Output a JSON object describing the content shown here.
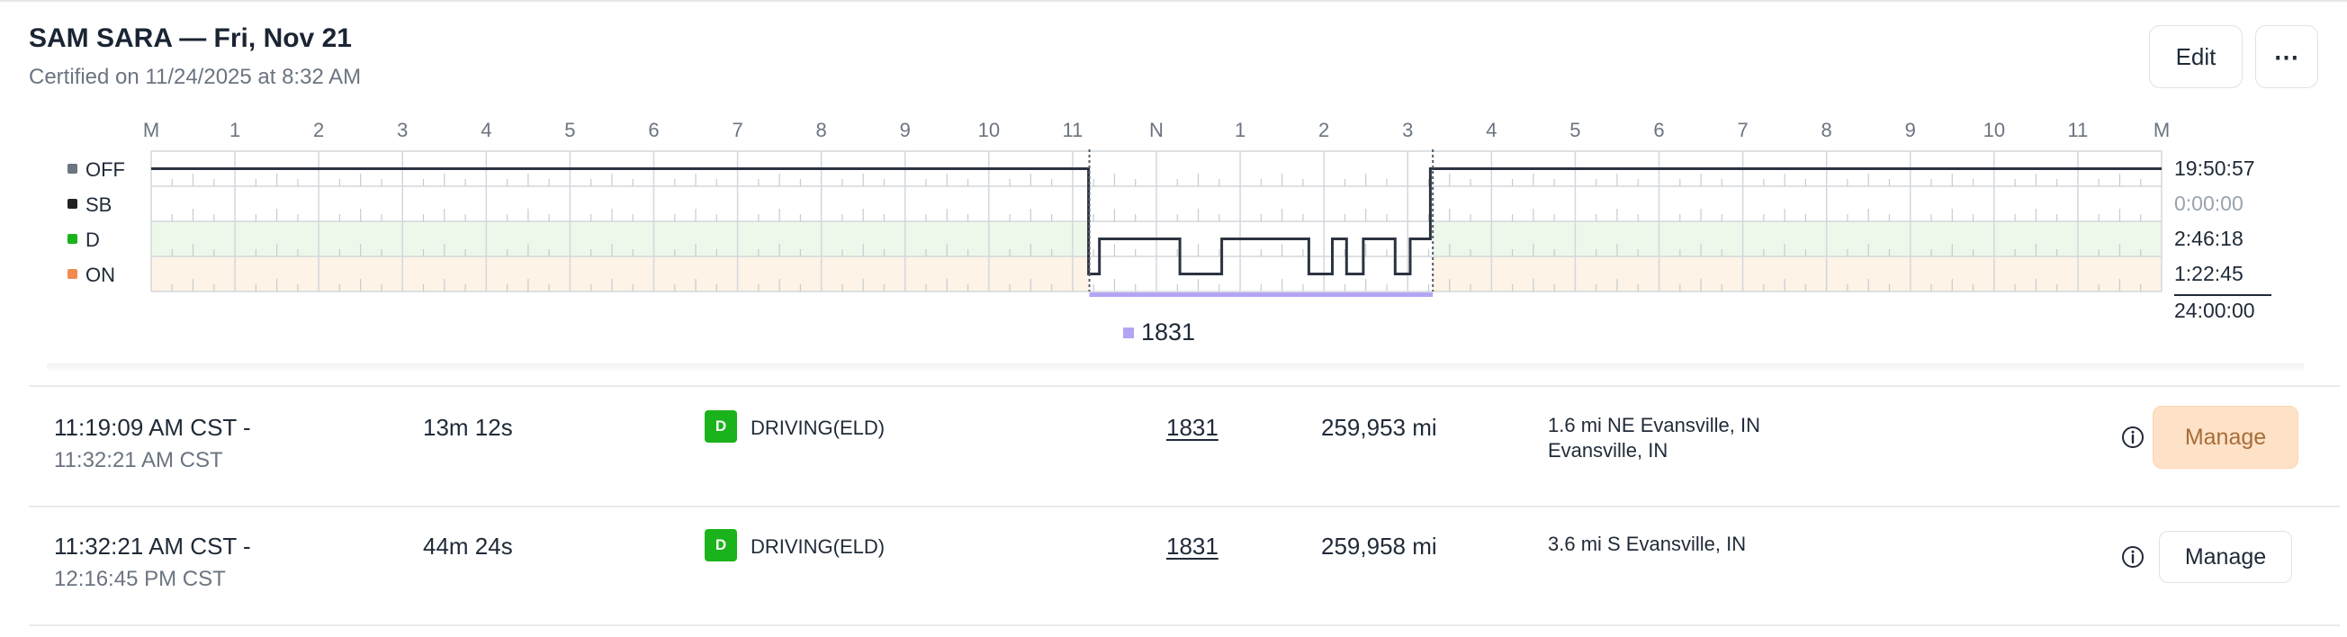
{
  "header": {
    "title": "SAM SARA — Fri, Nov 21",
    "subtitle": "Certified on 11/24/2025 at 8:32 AM",
    "edit_label": "Edit",
    "more_label": "⋯"
  },
  "graph": {
    "hour_labels": [
      "M",
      "1",
      "2",
      "3",
      "4",
      "5",
      "6",
      "7",
      "8",
      "9",
      "10",
      "11",
      "N",
      "1",
      "2",
      "3",
      "4",
      "5",
      "6",
      "7",
      "8",
      "9",
      "10",
      "11",
      "M"
    ],
    "statuses": [
      {
        "label": "OFF",
        "color": "#6b7480",
        "hours": "19:50:57",
        "hours_color": "#1f2a37"
      },
      {
        "label": "SB",
        "color": "#222222",
        "hours": "0:00:00",
        "hours_color": "#9aa3ad"
      },
      {
        "label": "D",
        "color": "#1bb31b",
        "hours": "2:46:18",
        "hours_color": "#1f2a37"
      },
      {
        "label": "ON",
        "color": "#f08a50",
        "hours": "1:22:45",
        "hours_color": "#1f2a37"
      }
    ],
    "total": "24:00:00",
    "vehicle_legend": "1831",
    "vehicle_color": "#b4a4f4",
    "vehicle_span_hours": [
      11.2,
      15.3
    ],
    "segments": [
      {
        "status": "OFF",
        "from": 0,
        "to": 11.19
      },
      {
        "status": "ON",
        "from": 11.19,
        "to": 11.32
      },
      {
        "status": "D",
        "from": 11.32,
        "to": 12.28
      },
      {
        "status": "ON",
        "from": 12.28,
        "to": 12.78
      },
      {
        "status": "D",
        "from": 12.78,
        "to": 13.82
      },
      {
        "status": "ON",
        "from": 13.82,
        "to": 14.1
      },
      {
        "status": "D",
        "from": 14.1,
        "to": 14.27
      },
      {
        "status": "ON",
        "from": 14.27,
        "to": 14.47
      },
      {
        "status": "D",
        "from": 14.47,
        "to": 14.85
      },
      {
        "status": "ON",
        "from": 14.85,
        "to": 15.03
      },
      {
        "status": "D",
        "from": 15.03,
        "to": 15.27
      },
      {
        "status": "OFF",
        "from": 15.27,
        "to": 24
      }
    ]
  },
  "events": [
    {
      "start": "11:19:09 AM CST -",
      "end": "11:32:21 AM CST",
      "duration": "13m 12s",
      "badge": "D",
      "status": "DRIVING(ELD)",
      "vehicle": "1831",
      "odometer": "259,953 mi",
      "location": "1.6 mi NE Evansville, IN",
      "location_city": "Evansville, IN",
      "manage_label": "Manage"
    },
    {
      "start": "11:32:21 AM CST -",
      "end": "12:16:45 PM CST",
      "duration": "44m 24s",
      "badge": "D",
      "status": "DRIVING(ELD)",
      "vehicle": "1831",
      "odometer": "259,958 mi",
      "location": "3.6 mi S Evansville, IN",
      "manage_label": "Manage"
    }
  ]
}
